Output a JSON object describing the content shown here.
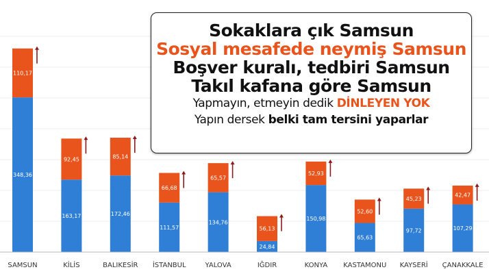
{
  "chart_data": {
    "type": "bar",
    "stacked": true,
    "categories": [
      "SAMSUN",
      "KİLİS",
      "BALIKESİR",
      "İSTANBUL",
      "YALOVA",
      "IĞDIR",
      "KONYA",
      "KASTAMONU",
      "KAYSERİ",
      "ÇANAKKALE"
    ],
    "series": [
      {
        "values": [
          348.36,
          163.17,
          172.46,
          111.57,
          134.76,
          24.84,
          150.98,
          65.63,
          97.72,
          107.29
        ]
      },
      {
        "values": [
          110.17,
          92.45,
          85.14,
          66.68,
          65.57,
          56.13,
          52.93,
          52.6,
          45.23,
          42.47
        ]
      }
    ],
    "value_labels": [
      [
        "348,36",
        "163,17",
        "172,46",
        "111,57",
        "134,76",
        "24,84",
        "150,98",
        "65,63",
        "97,72",
        "107,29"
      ],
      [
        "110,17",
        "92,45",
        "85,14",
        "66,68",
        "65,57",
        "56,13",
        "52,93",
        "52,60",
        "45,23",
        "42,47"
      ]
    ],
    "grid": true,
    "legend": "none"
  },
  "colors": {
    "blue": "#2f7fd6",
    "orange": "#e8541c",
    "arrow": "#8b1a1a",
    "grid": "#eeeeee"
  },
  "overlay": {
    "line1": "Sokaklara çık Samsun",
    "line2": "Sosyal mesafede neymiş Samsun",
    "line3": "Boşver kuralı, tedbiri Samsun",
    "line4": "Takıl kafana göre Samsun",
    "line5_a": "Yapmayın, etmeyin dedik ",
    "line5_b": "DİNLEYEN YOK",
    "line6_a": "Yapın dersek ",
    "line6_b": "belki tam tersini yaparlar"
  }
}
